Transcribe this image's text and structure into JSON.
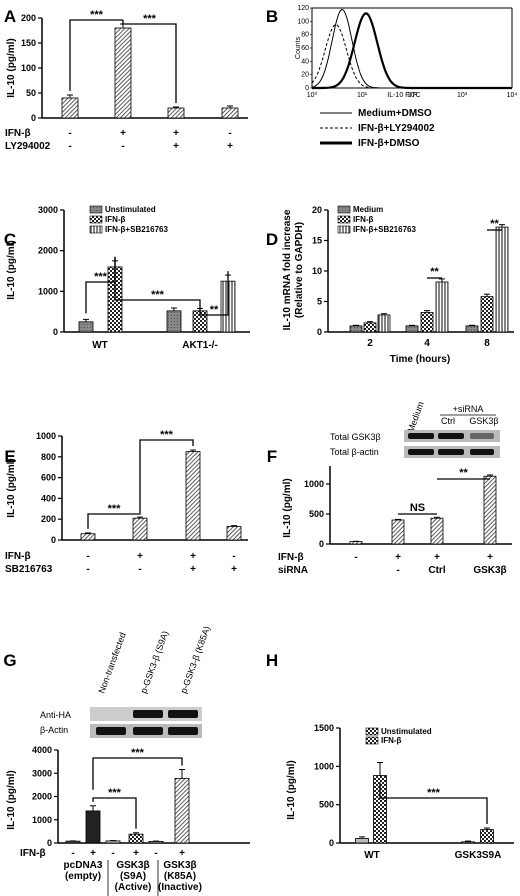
{
  "panels": [
    {
      "id": "A",
      "ylabel": "IL-10 (pg/ml)",
      "yticks": [
        0,
        50,
        100,
        150,
        200
      ],
      "ylim": [
        0,
        200
      ],
      "conditions": [
        {
          "name": "IFN-β",
          "values": [
            "-",
            "+",
            "+",
            "-"
          ]
        },
        {
          "name": "LY294002",
          "values": [
            "-",
            "-",
            "+",
            "+"
          ]
        }
      ],
      "bars": [
        40,
        180,
        20,
        20
      ],
      "errors": [
        6,
        8,
        2,
        4
      ],
      "significance": [
        "***",
        "***"
      ]
    },
    {
      "id": "B",
      "xlabel": "IL-10 FITC",
      "ylabel": "Counts",
      "xticks": [
        "10⁰",
        "10¹",
        "10²",
        "10³",
        "10⁴"
      ],
      "yticks": [
        0,
        20,
        40,
        60,
        80,
        100,
        120
      ],
      "legend": [
        "Medium+DMSO",
        "IFN-β+LY294002",
        "IFN-β+DMSO"
      ]
    },
    {
      "id": "C",
      "ylabel": "IL-10 (pg/ml)",
      "yticks": [
        0,
        1000,
        2000,
        3000
      ],
      "ylim": [
        0,
        3000
      ],
      "categories": [
        "WT",
        "AKT1-/-"
      ],
      "legend": [
        "Unstimulated",
        "IFN-β",
        "IFN-β+SB216763"
      ],
      "groups": [
        [
          250,
          1600,
          null
        ],
        [
          520,
          520,
          1250
        ]
      ],
      "errors": [
        [
          60,
          150,
          null
        ],
        [
          70,
          60,
          150
        ]
      ],
      "significance": [
        "***",
        "***",
        "**"
      ]
    },
    {
      "id": "D",
      "ylabel": "IL-10 mRNA fold increase",
      "ylabel2": "(Relative to GAPDH)",
      "xlabel": "Time (hours)",
      "yticks": [
        0,
        5,
        10,
        15,
        20
      ],
      "ylim": [
        0,
        20
      ],
      "categories": [
        "2",
        "4",
        "8"
      ],
      "legend": [
        "Medium",
        "IFN-β",
        "IFN-β+SB216763"
      ],
      "groups": [
        [
          1,
          1.5,
          2.8
        ],
        [
          1,
          3.2,
          8.2
        ],
        [
          1,
          5.8,
          17.2
        ]
      ],
      "errors": [
        [
          0.1,
          0.2,
          0.2
        ],
        [
          0.1,
          0.3,
          0.5
        ],
        [
          0.1,
          0.4,
          0.4
        ]
      ],
      "significance": [
        "**",
        "**"
      ]
    },
    {
      "id": "E",
      "ylabel": "IL-10 (pg/ml)",
      "yticks": [
        0,
        200,
        400,
        600,
        800,
        1000
      ],
      "ylim": [
        0,
        1000
      ],
      "conditions": [
        {
          "name": "IFN-β",
          "values": [
            "-",
            "+",
            "+",
            "-"
          ]
        },
        {
          "name": "SB216763",
          "values": [
            "-",
            "-",
            "+",
            "+"
          ]
        }
      ],
      "bars": [
        60,
        210,
        850,
        130
      ],
      "errors": [
        8,
        10,
        15,
        8
      ],
      "significance": [
        "***",
        "***"
      ]
    },
    {
      "id": "F",
      "ylabel": "IL-10 (pg/ml)",
      "yticks": [
        0,
        500,
        1000
      ],
      "ylim": [
        0,
        1300
      ],
      "conditions": [
        {
          "name": "IFN-β",
          "values": [
            "-",
            "+",
            "+",
            "+"
          ]
        },
        {
          "name": "siRNA",
          "values": [
            "",
            "-",
            "Ctrl",
            "GSK3β"
          ]
        }
      ],
      "bars": [
        40,
        400,
        430,
        1130
      ],
      "errors": [
        5,
        10,
        15,
        20
      ],
      "significance": [
        "NS",
        "**"
      ],
      "blot": {
        "lanes": [
          "Medium",
          "Ctrl",
          "GSK3β"
        ],
        "header": "+siRNA",
        "rows": [
          "Total GSK3β",
          "Total β-actin"
        ]
      }
    },
    {
      "id": "G",
      "ylabel": "IL-10 (pg/ml)",
      "yticks": [
        0,
        1000,
        2000,
        3000,
        4000
      ],
      "ylim": [
        0,
        4000
      ],
      "conditions": [
        {
          "name": "IFN-β",
          "values": [
            "-",
            "+",
            "-",
            "+",
            "-",
            "+"
          ]
        }
      ],
      "groupLabels": [
        [
          "pcDNA3",
          "(empty)"
        ],
        [
          "GSK3β",
          "(S9A)",
          "(Active)"
        ],
        [
          "GSK3β",
          "(K85A)",
          "(Inactive)"
        ]
      ],
      "bars": [
        80,
        1380,
        90,
        380,
        70,
        2780
      ],
      "errors": [
        10,
        220,
        15,
        60,
        15,
        380
      ],
      "significance": [
        "***",
        "***"
      ],
      "blot": {
        "lanes": [
          "Non-transfected",
          "p-GSK3-β (S9A)",
          "p-GSK3-β (K85A)"
        ],
        "rows": [
          "Anti-HA",
          "β-Actin"
        ]
      }
    },
    {
      "id": "H",
      "ylabel": "IL-10 (pg/ml)",
      "yticks": [
        0,
        500,
        1000,
        1500
      ],
      "ylim": [
        0,
        1500
      ],
      "categories": [
        "WT",
        "GSK3S9A"
      ],
      "legend": [
        "Unstimulated",
        "IFN-β"
      ],
      "groups": [
        [
          60,
          880
        ],
        [
          15,
          175
        ]
      ],
      "errors": [
        [
          20,
          170
        ],
        [
          10,
          20
        ]
      ],
      "significance": [
        "***"
      ]
    }
  ],
  "colors": {
    "black": "#000000",
    "gray": "#777777",
    "light": "#cccccc",
    "darkbar": "#222222"
  }
}
